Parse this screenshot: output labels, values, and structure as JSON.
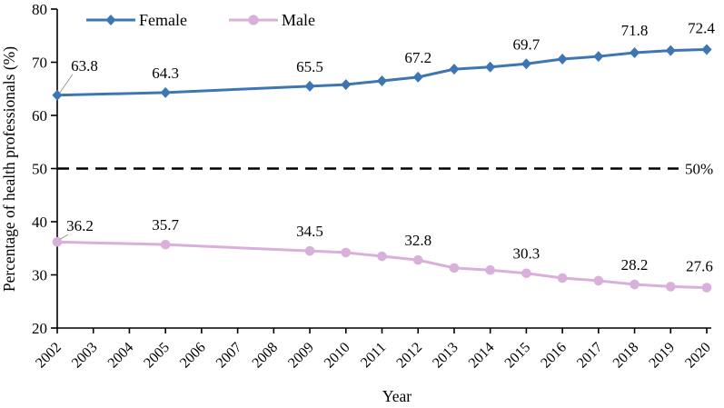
{
  "chart_data": {
    "type": "line",
    "title": "",
    "xlabel": "Year",
    "ylabel": "Percentage of health professionals (%)",
    "x_ticks": [
      2002,
      2003,
      2004,
      2005,
      2006,
      2007,
      2008,
      2009,
      2010,
      2011,
      2012,
      2013,
      2014,
      2015,
      2016,
      2017,
      2018,
      2019,
      2020
    ],
    "xlim": [
      2002,
      2020
    ],
    "ylim": [
      20,
      80
    ],
    "y_ticks": [
      20,
      30,
      40,
      50,
      60,
      70,
      80
    ],
    "grid": false,
    "legend_position": "top",
    "axis_color": "#000000",
    "reference_line": {
      "value": 50,
      "label": "50%",
      "style": "dashed",
      "color": "#000000"
    },
    "series": [
      {
        "name": "Female",
        "color": "#3E76B4",
        "marker": "diamond",
        "x": [
          2002,
          2005,
          2009,
          2010,
          2011,
          2012,
          2013,
          2014,
          2015,
          2016,
          2017,
          2018,
          2019,
          2020
        ],
        "values": [
          63.8,
          64.3,
          65.5,
          65.8,
          66.5,
          67.2,
          68.7,
          69.1,
          69.7,
          70.6,
          71.1,
          71.8,
          72.2,
          72.4
        ],
        "data_labels": [
          {
            "x": 2002,
            "text": "63.8",
            "dx": 30,
            "dy": -11,
            "leader": true
          },
          {
            "x": 2005,
            "text": "64.3"
          },
          {
            "x": 2009,
            "text": "65.5"
          },
          {
            "x": 2012,
            "text": "67.2"
          },
          {
            "x": 2015,
            "text": "69.7"
          },
          {
            "x": 2018,
            "text": "71.8",
            "dy": -3
          },
          {
            "x": 2020,
            "text": "72.4",
            "dx": -6,
            "dy": -2
          }
        ]
      },
      {
        "name": "Male",
        "color": "#D8B0DA",
        "marker": "circle",
        "x": [
          2002,
          2005,
          2009,
          2010,
          2011,
          2012,
          2013,
          2014,
          2015,
          2016,
          2017,
          2018,
          2019,
          2020
        ],
        "values": [
          36.2,
          35.7,
          34.5,
          34.2,
          33.5,
          32.8,
          31.3,
          30.9,
          30.3,
          29.4,
          28.9,
          28.2,
          27.8,
          27.6
        ],
        "data_labels": [
          {
            "x": 2002,
            "text": "36.2",
            "dx": 25,
            "dy": 4,
            "leader": true
          },
          {
            "x": 2005,
            "text": "35.7"
          },
          {
            "x": 2009,
            "text": "34.5"
          },
          {
            "x": 2012,
            "text": "32.8"
          },
          {
            "x": 2015,
            "text": "30.3"
          },
          {
            "x": 2018,
            "text": "28.2"
          },
          {
            "x": 2020,
            "text": "27.6",
            "dx": -8,
            "dy": -2
          }
        ]
      }
    ]
  }
}
